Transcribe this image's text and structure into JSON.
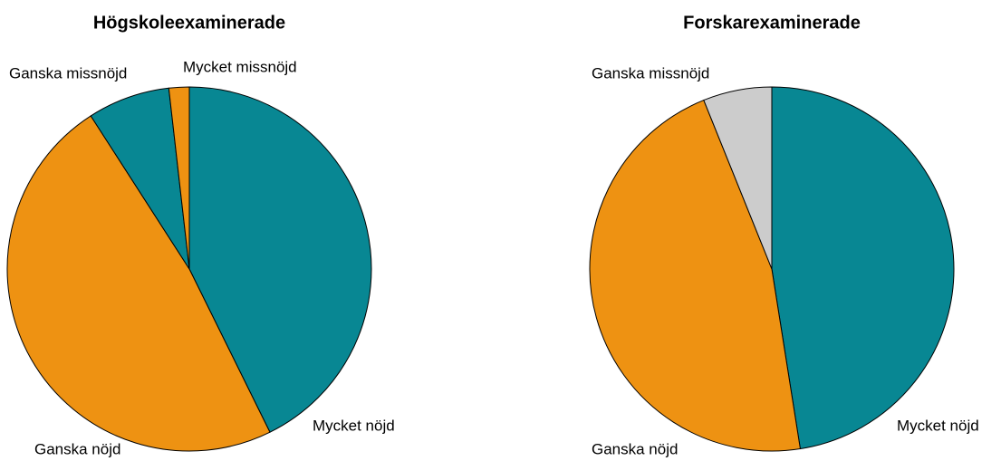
{
  "chart_data": [
    {
      "type": "pie",
      "title": "Högskoleexaminerade",
      "categories": [
        "Mycket nöjd",
        "Ganska nöjd",
        "Ganska missnöjd",
        "Mycket missnöjd"
      ],
      "values": [
        42.7,
        48.2,
        7.3,
        1.8
      ],
      "colors": [
        "#088793",
        "#ee9212",
        "#088793",
        "#ee9212"
      ]
    },
    {
      "type": "pie",
      "title": "Forskarexaminerade",
      "categories": [
        "Mycket nöjd",
        "Ganska nöjd",
        "Ganska missnöjd"
      ],
      "values": [
        47.5,
        46.4,
        6.1
      ],
      "colors": [
        "#088793",
        "#ee9212",
        "#cccccc"
      ]
    }
  ]
}
